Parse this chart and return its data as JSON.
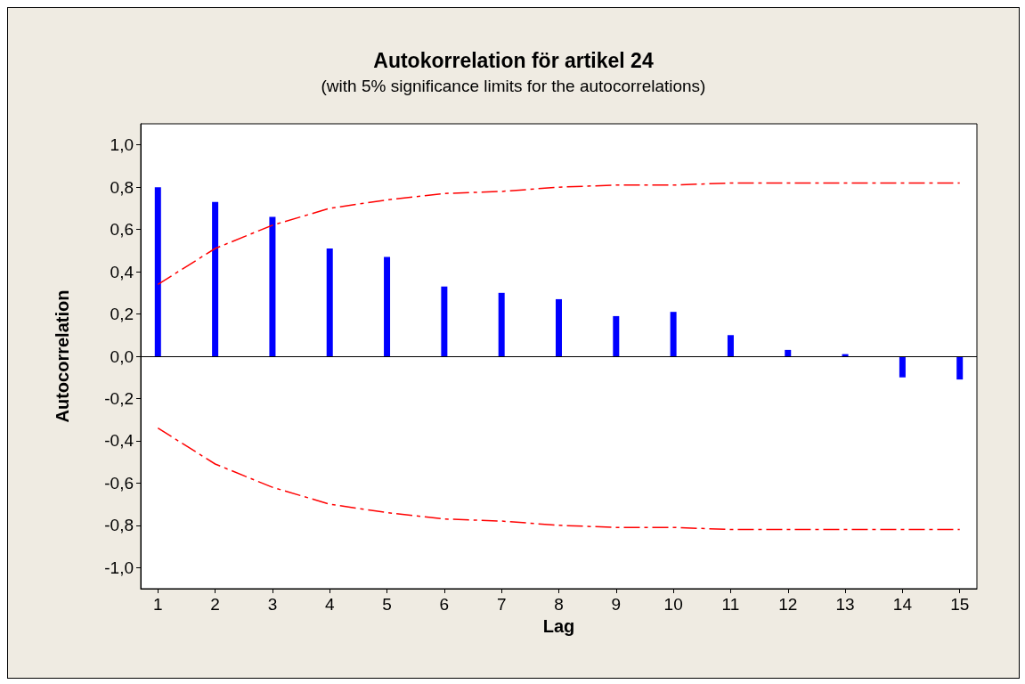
{
  "chart_data": {
    "type": "bar",
    "title": "Autokorrelation för artikel 24",
    "subtitle": "(with 5% significance limits for the autocorrelations)",
    "xlabel": "Lag",
    "ylabel": "Autocorrelation",
    "x": [
      1,
      2,
      3,
      4,
      5,
      6,
      7,
      8,
      9,
      10,
      11,
      12,
      13,
      14,
      15
    ],
    "series": [
      {
        "color": "#0000ff",
        "values": [
          0.8,
          0.73,
          0.66,
          0.51,
          0.47,
          0.33,
          0.3,
          0.27,
          0.19,
          0.21,
          0.1,
          0.03,
          0.01,
          -0.1,
          -0.11
        ]
      },
      {
        "type": "line",
        "color": "#ff0000",
        "line_style": "dashed",
        "values": [
          0.34,
          0.51,
          0.62,
          0.7,
          0.74,
          0.77,
          0.78,
          0.8,
          0.81,
          0.81,
          0.82,
          0.82,
          0.82,
          0.82,
          0.82
        ]
      },
      {
        "type": "line",
        "color": "#ff0000",
        "line_style": "dashed",
        "values": [
          -0.34,
          -0.51,
          -0.62,
          -0.7,
          -0.74,
          -0.77,
          -0.78,
          -0.8,
          -0.81,
          -0.81,
          -0.82,
          -0.82,
          -0.82,
          -0.82,
          -0.82
        ]
      }
    ],
    "xlim": [
      0.7,
      15.3
    ],
    "xticks": [
      1,
      2,
      3,
      4,
      5,
      6,
      7,
      8,
      9,
      10,
      11,
      12,
      13,
      14,
      15
    ],
    "ylim": [
      -1.1,
      1.1
    ],
    "yticks": [
      {
        "value": -1,
        "label": "-1,0"
      },
      {
        "value": -0.8,
        "label": "-0,8"
      },
      {
        "value": -0.6,
        "label": "-0,6"
      },
      {
        "value": -0.4,
        "label": "-0,4"
      },
      {
        "value": -0.2,
        "label": "-0,2"
      },
      {
        "value": 0,
        "label": "0,0"
      },
      {
        "value": 0.2,
        "label": "0,2"
      },
      {
        "value": 0.4,
        "label": "0,4"
      },
      {
        "value": 0.6,
        "label": "0,6"
      },
      {
        "value": 0.8,
        "label": "0,8"
      },
      {
        "value": 1,
        "label": "1,0"
      }
    ],
    "ref_lines": [
      {
        "axis": "y",
        "value": 0,
        "color": "#000000"
      }
    ],
    "grid": false,
    "marker": "none"
  }
}
